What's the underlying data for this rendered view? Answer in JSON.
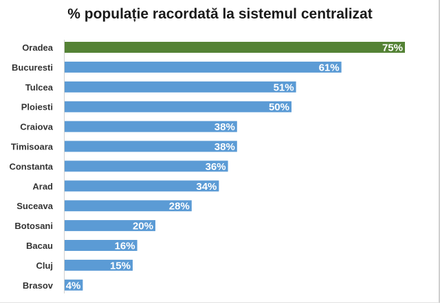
{
  "chart_data": {
    "type": "bar",
    "orientation": "horizontal",
    "title": "% populație racordată la sistemul centralizat",
    "categories": [
      "Oradea",
      "Bucuresti",
      "Tulcea",
      "Ploiesti",
      "Craiova",
      "Timisoara",
      "Constanta",
      "Arad",
      "Suceava",
      "Botosani",
      "Bacau",
      "Cluj",
      "Brasov"
    ],
    "values": [
      75,
      61,
      51,
      50,
      38,
      38,
      36,
      34,
      28,
      20,
      16,
      15,
      4
    ],
    "value_labels": [
      "75%",
      "61%",
      "51%",
      "50%",
      "38%",
      "38%",
      "36%",
      "34%",
      "28%",
      "20%",
      "16%",
      "15%",
      "4%"
    ],
    "unit": "%",
    "xlim": [
      0,
      75
    ],
    "xlabel": "",
    "ylabel": "",
    "grid": false,
    "legend": "none",
    "colors": {
      "highlight": "#548235",
      "default": "#5b9bd5"
    },
    "highlight_index": 0
  }
}
